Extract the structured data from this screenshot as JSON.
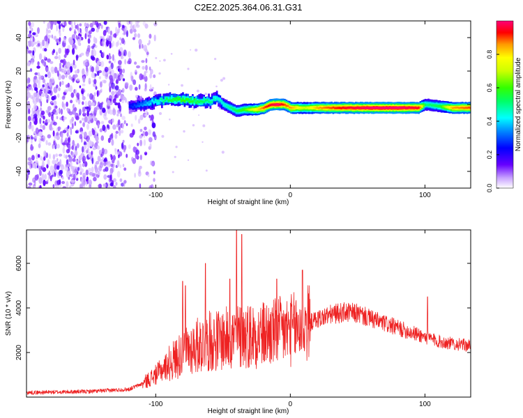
{
  "figure_title": "C2E2.2025.364.06.31.G31",
  "colors": {
    "snr_line": "#ee2222",
    "background": "#ffffff",
    "axes": "#000000"
  },
  "chart_data": [
    {
      "type": "heatmap",
      "title": "C2E2.2025.364.06.31.G31",
      "xlabel": "Height of straight line (km)",
      "ylabel": "Frequency (Hz)",
      "xlim": [
        -196,
        134
      ],
      "ylim": [
        -50,
        50
      ],
      "xticks": [
        -100,
        0,
        100
      ],
      "xtick_labels": [
        "-100",
        "0",
        "100"
      ],
      "yticks": [
        -40,
        -20,
        0,
        20,
        40
      ],
      "ytick_labels": [
        "-40",
        "-20",
        "0",
        "20",
        "40"
      ],
      "colorbar": {
        "label": "Normalized spectral amplitude",
        "range": [
          0,
          1
        ],
        "ticks": [
          0.0,
          0.2,
          0.4,
          0.6,
          0.8
        ],
        "tick_labels": [
          "0.0",
          "0.2",
          "0.4",
          "0.6",
          "0.8"
        ]
      },
      "noise_region_x": [
        -196,
        -108
      ],
      "ridge": {
        "x": [
          -120,
          -110,
          -100,
          -90,
          -80,
          -70,
          -60,
          -55,
          -50,
          -45,
          -40,
          -35,
          -30,
          -25,
          -20,
          -15,
          -10,
          -5,
          0,
          10,
          20,
          40,
          60,
          80,
          95,
          100,
          110,
          120,
          134
        ],
        "freq": [
          -1,
          0,
          2,
          3,
          3,
          2,
          2,
          4,
          0,
          -2,
          -4,
          -3,
          -3,
          -3,
          -2,
          0,
          0,
          0,
          -2,
          -2,
          -2,
          -2,
          -2,
          -2,
          -2,
          0,
          -1,
          -2,
          -2
        ],
        "intensity": [
          0.25,
          0.35,
          0.45,
          0.55,
          0.6,
          0.55,
          0.5,
          0.45,
          0.45,
          0.5,
          0.55,
          0.6,
          0.7,
          0.8,
          0.9,
          0.95,
          1.0,
          0.9,
          0.85,
          0.7,
          0.85,
          0.95,
          1.0,
          1.0,
          0.95,
          0.5,
          0.55,
          0.85,
          0.9
        ]
      }
    },
    {
      "type": "line",
      "xlabel": "Height of straight line (km)",
      "ylabel": "SNR (10 * v/v)",
      "xlim": [
        -196,
        134
      ],
      "ylim": [
        0,
        7500
      ],
      "xticks": [
        -100,
        0,
        100
      ],
      "xtick_labels": [
        "-100",
        "0",
        "100"
      ],
      "yticks": [
        2000,
        4000,
        6000
      ],
      "ytick_labels": [
        "2000",
        "4000",
        "6000"
      ],
      "series": [
        {
          "name": "SNR",
          "envelope_x": [
            -196,
            -150,
            -120,
            -110,
            -100,
            -90,
            -80,
            -70,
            -60,
            -50,
            -40,
            -30,
            -20,
            -10,
            0,
            10,
            20,
            30,
            40,
            50,
            60,
            70,
            80,
            90,
            100,
            110,
            120,
            134
          ],
          "envelope_mean": [
            200,
            250,
            350,
            600,
            1000,
            1500,
            2000,
            2300,
            2500,
            2600,
            2700,
            2800,
            2800,
            2900,
            3000,
            3200,
            3500,
            3700,
            3800,
            3750,
            3500,
            3300,
            3100,
            2900,
            2700,
            2500,
            2400,
            2300
          ],
          "spikes": [
            {
              "x": -80,
              "y": 5200
            },
            {
              "x": -78,
              "y": 5000
            },
            {
              "x": -63,
              "y": 6000
            },
            {
              "x": -45,
              "y": 5300
            },
            {
              "x": -40,
              "y": 7500
            },
            {
              "x": -36,
              "y": 7300
            },
            {
              "x": -10,
              "y": 5300
            },
            {
              "x": 9,
              "y": 5700
            },
            {
              "x": 102,
              "y": 4500
            }
          ]
        }
      ]
    }
  ]
}
